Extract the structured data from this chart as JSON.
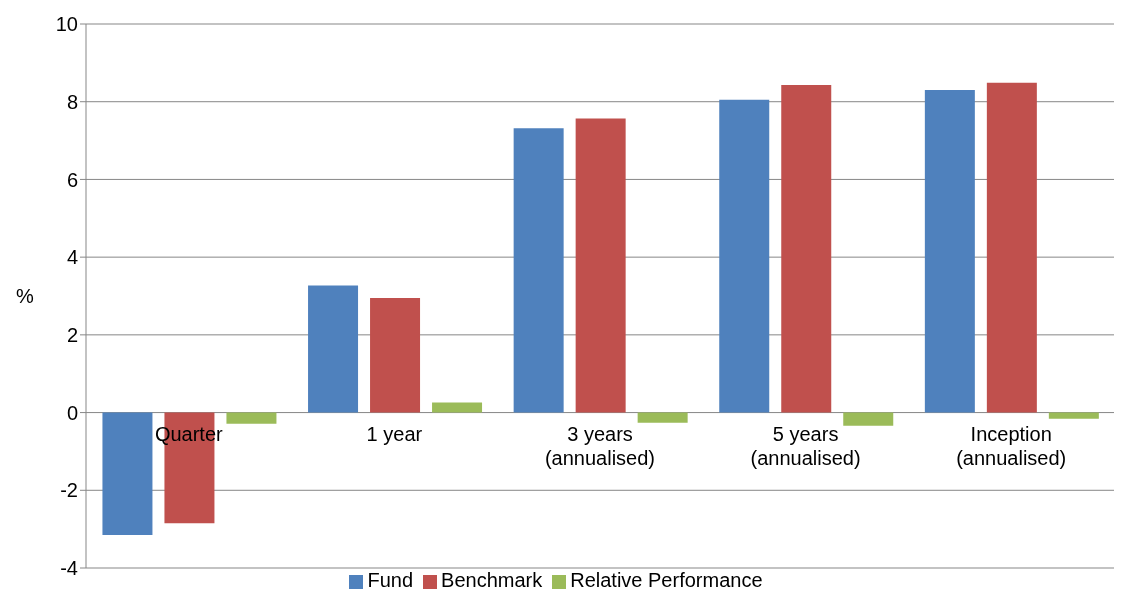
{
  "chart_data": {
    "type": "bar",
    "ylabel": "%",
    "categories": [
      "Quarter",
      "1 year",
      "3 years\n(annualised)",
      "5 years\n(annualised)",
      "Inception\n(annualised)"
    ],
    "series": [
      {
        "name": "Fund",
        "color": "#4f81bd",
        "values": [
          -3.15,
          3.27,
          7.32,
          8.05,
          8.3
        ]
      },
      {
        "name": "Benchmark",
        "color": "#c0504d",
        "values": [
          -2.85,
          2.95,
          7.57,
          8.43,
          8.49
        ]
      },
      {
        "name": "Relative Performance",
        "color": "#9bbb59",
        "values": [
          -0.29,
          0.26,
          -0.26,
          -0.34,
          -0.16
        ]
      }
    ],
    "ylim": [
      -4,
      10
    ],
    "yticks": [
      -4,
      -2,
      0,
      2,
      4,
      6,
      8,
      10
    ],
    "grid": "y",
    "legend": "bottom"
  }
}
